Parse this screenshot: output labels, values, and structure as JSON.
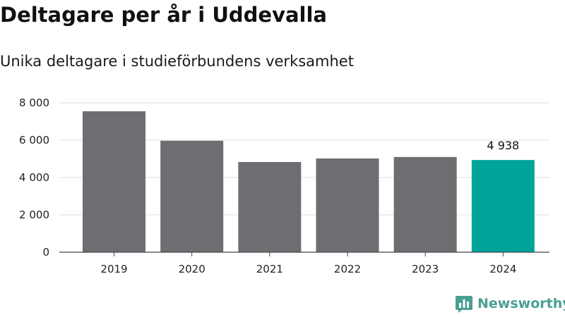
{
  "title": "Deltagare per år i Uddevalla",
  "subtitle": "Unika deltagare i studieförbundens verksamhet",
  "brand": {
    "name": "Newsworthy",
    "color": "#4a9f92",
    "icon": "bar-chart-logo-icon"
  },
  "colors": {
    "bar": "#6e6d72",
    "highlight": "#00a39a",
    "grid": "#dddddd",
    "axis": "#444444"
  },
  "chart_data": {
    "type": "bar",
    "title": "Deltagare per år i Uddevalla",
    "subtitle": "Unika deltagare i studieförbundens verksamhet",
    "xlabel": "",
    "ylabel": "",
    "categories": [
      "2019",
      "2020",
      "2021",
      "2022",
      "2023",
      "2024"
    ],
    "values": [
      7550,
      5970,
      4830,
      5020,
      5100,
      4938
    ],
    "highlight_index": 5,
    "data_labels": [
      {
        "index": 5,
        "text": "4 938"
      }
    ],
    "ylim": [
      0,
      8000
    ],
    "yticks": [
      0,
      2000,
      4000,
      6000,
      8000
    ],
    "ytick_labels": [
      "0",
      "2 000",
      "4 000",
      "6 000",
      "8 000"
    ],
    "grid": true,
    "legend": "none"
  }
}
